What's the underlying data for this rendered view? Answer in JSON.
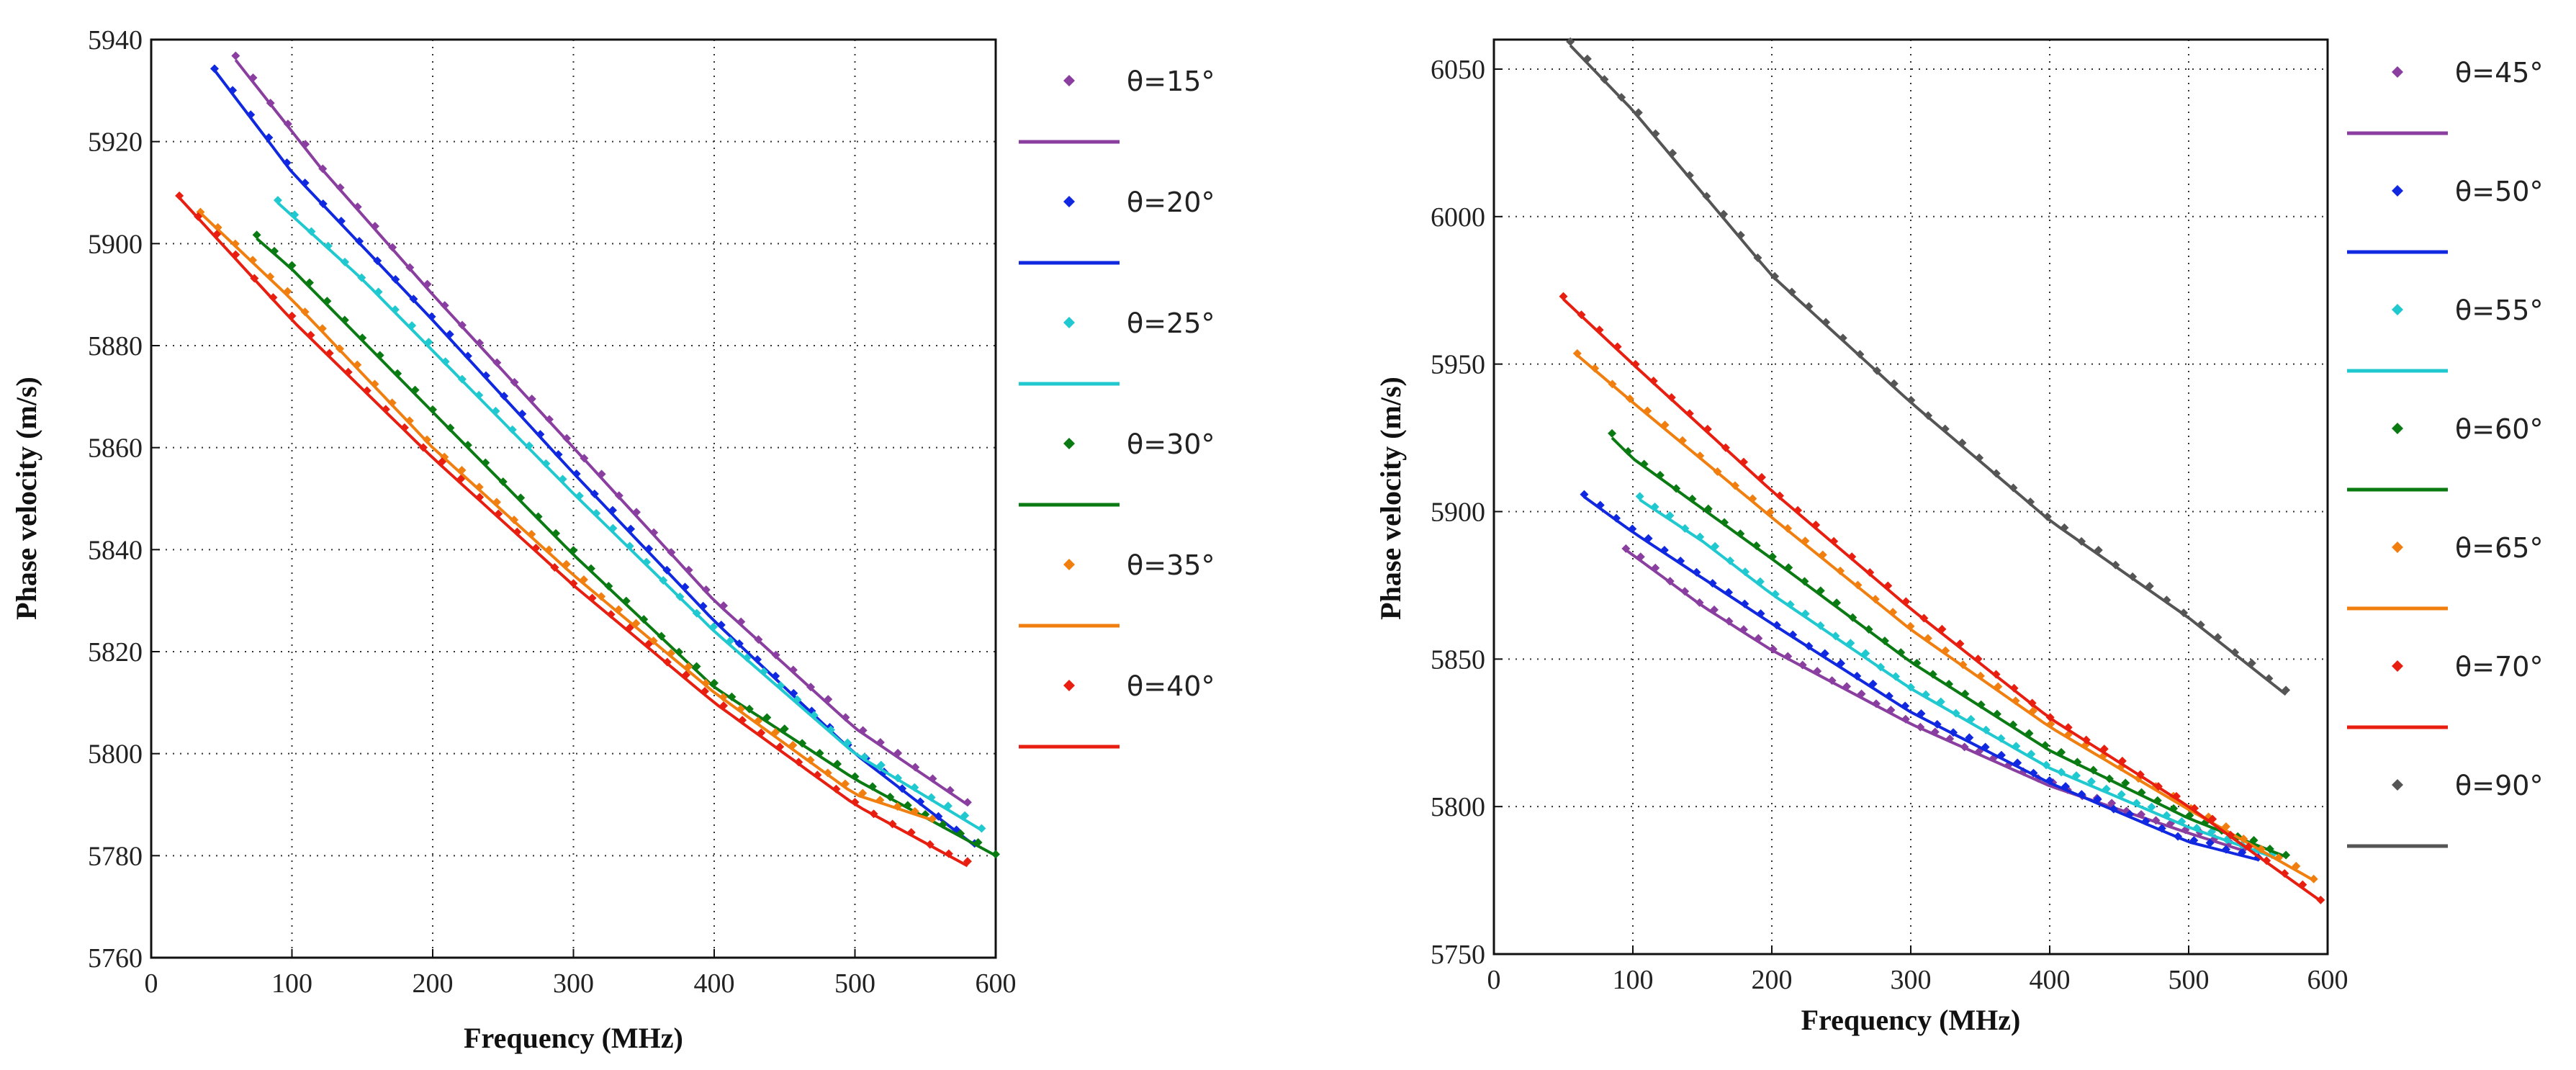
{
  "chart_data": [
    {
      "type": "line",
      "xlabel": "Frequency  (MHz)",
      "ylabel": "Phase velocity  (m/s)",
      "xlim": [
        0,
        600
      ],
      "ylim": [
        5760,
        5940
      ],
      "xticks": [
        0,
        100,
        200,
        300,
        400,
        500,
        600
      ],
      "yticks": [
        5760,
        5780,
        5800,
        5820,
        5840,
        5860,
        5880,
        5900,
        5920,
        5940
      ],
      "grid": true,
      "legend_position": "right",
      "series": [
        {
          "name": "θ=15°",
          "color": "#8a3fa0",
          "x": [
            60,
            120,
            200,
            300,
            400,
            500,
            580
          ],
          "y": [
            5936,
            5915,
            5890,
            5860,
            5830,
            5805,
            5790
          ]
        },
        {
          "name": "θ=20°",
          "color": "#1028e0",
          "x": [
            45,
            100,
            200,
            300,
            400,
            500,
            585
          ],
          "y": [
            5934,
            5914,
            5885,
            5855,
            5826,
            5800,
            5782
          ]
        },
        {
          "name": "θ=25°",
          "color": "#20c8d0",
          "x": [
            90,
            150,
            200,
            300,
            400,
            500,
            590
          ],
          "y": [
            5908,
            5893,
            5879,
            5851,
            5824,
            5800,
            5785
          ]
        },
        {
          "name": "θ=30°",
          "color": "#0a7a12",
          "x": [
            75,
            100,
            200,
            300,
            400,
            500,
            600
          ],
          "y": [
            5901,
            5895,
            5867,
            5839,
            5813,
            5795,
            5780
          ]
        },
        {
          "name": "θ=35°",
          "color": "#f07f10",
          "x": [
            35,
            100,
            200,
            300,
            400,
            500,
            555
          ],
          "y": [
            5906,
            5889,
            5860,
            5835,
            5812,
            5792,
            5787
          ]
        },
        {
          "name": "θ=40°",
          "color": "#e81e10",
          "x": [
            20,
            100,
            200,
            300,
            400,
            500,
            580
          ],
          "y": [
            5909,
            5885,
            5858,
            5833,
            5810,
            5790,
            5778
          ]
        }
      ]
    },
    {
      "type": "line",
      "xlabel": "Frequency  (MHz)",
      "ylabel": "Phase velocity  (m/s)",
      "xlim": [
        0,
        600
      ],
      "ylim": [
        5750,
        6060
      ],
      "xticks": [
        0,
        100,
        200,
        300,
        400,
        500,
        600
      ],
      "yticks": [
        5750,
        5800,
        5850,
        5900,
        5950,
        6000,
        6050
      ],
      "grid": true,
      "legend_position": "right",
      "series": [
        {
          "name": "θ=45°",
          "color": "#8a3fa0",
          "x": [
            95,
            150,
            200,
            300,
            400,
            500,
            540
          ],
          "y": [
            5887,
            5868,
            5853,
            5828,
            5807,
            5791,
            5785
          ]
        },
        {
          "name": "θ=50°",
          "color": "#1028e0",
          "x": [
            65,
            100,
            200,
            300,
            400,
            500,
            550
          ],
          "y": [
            5905,
            5893,
            5862,
            5832,
            5808,
            5788,
            5782
          ]
        },
        {
          "name": "θ=55°",
          "color": "#20c8d0",
          "x": [
            105,
            150,
            200,
            300,
            400,
            500,
            560
          ],
          "y": [
            5904,
            5890,
            5872,
            5840,
            5813,
            5793,
            5783
          ]
        },
        {
          "name": "θ=60°",
          "color": "#0a7a12",
          "x": [
            85,
            100,
            200,
            300,
            400,
            500,
            570
          ],
          "y": [
            5925,
            5918,
            5884,
            5849,
            5819,
            5796,
            5783
          ]
        },
        {
          "name": "θ=65°",
          "color": "#f07f10",
          "x": [
            60,
            100,
            200,
            300,
            400,
            500,
            590
          ],
          "y": [
            5953,
            5937,
            5898,
            5860,
            5827,
            5799,
            5775
          ]
        },
        {
          "name": "θ=70°",
          "color": "#e81e10",
          "x": [
            50,
            100,
            200,
            300,
            400,
            500,
            595
          ],
          "y": [
            5972,
            5950,
            5907,
            5867,
            5830,
            5800,
            5768
          ]
        },
        {
          "name": "θ=90°",
          "color": "#555555",
          "x": [
            55,
            100,
            200,
            300,
            400,
            500,
            570
          ],
          "y": [
            6058,
            6036,
            5980,
            5937,
            5897,
            5864,
            5838
          ]
        }
      ]
    }
  ]
}
